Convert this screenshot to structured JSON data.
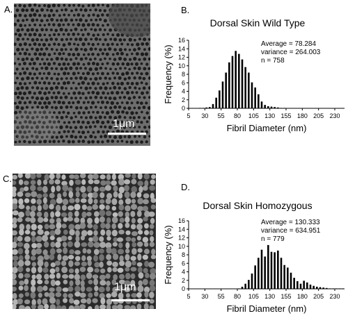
{
  "panels": {
    "a": {
      "letter": "A.",
      "scale_label": "1μm"
    },
    "b": {
      "letter": "B."
    },
    "c": {
      "letter": "C.",
      "scale_label": "1μm"
    },
    "d": {
      "letter": "D."
    }
  },
  "chart_data": [
    {
      "type": "bar",
      "title": "Dorsal Skin Wild Type",
      "xlabel": "Fibril Diameter (nm)",
      "ylabel": "Frequency (%)",
      "xlim": [
        5,
        245
      ],
      "ylim": [
        0,
        16
      ],
      "xticks": [
        5,
        30,
        55,
        80,
        105,
        130,
        155,
        180,
        205,
        230
      ],
      "yticks": [
        0,
        2,
        4,
        6,
        8,
        10,
        12,
        14,
        16
      ],
      "bin_width": 5,
      "annotations": [
        "Average = 78.284",
        "variance = 264.003",
        "n = 758"
      ],
      "x": [
        5,
        10,
        15,
        20,
        25,
        30,
        35,
        40,
        45,
        50,
        55,
        60,
        65,
        70,
        75,
        80,
        85,
        90,
        95,
        100,
        105,
        110,
        115,
        120,
        125,
        130,
        135,
        140,
        145,
        150,
        155,
        160,
        165,
        170,
        175,
        180,
        185,
        190,
        195,
        200,
        205,
        210,
        215,
        220,
        225,
        230,
        235,
        240
      ],
      "values": [
        0,
        0,
        0,
        0.1,
        0.1,
        0.2,
        0.3,
        1.0,
        2.5,
        4.2,
        6.3,
        8.4,
        10.8,
        12.3,
        13.5,
        12.8,
        11.5,
        9.7,
        8.4,
        6.1,
        4.9,
        3.3,
        1.6,
        0.8,
        0.5,
        0.4,
        0.3,
        0.2,
        0.1,
        0.1,
        0,
        0,
        0,
        0,
        0,
        0,
        0,
        0,
        0,
        0,
        0,
        0,
        0,
        0,
        0,
        0,
        0,
        0
      ]
    },
    {
      "type": "bar",
      "title": "Dorsal Skin Homozygous",
      "xlabel": "Fibril Diameter (nm)",
      "ylabel": "Frequency (%)",
      "xlim": [
        5,
        245
      ],
      "ylim": [
        0,
        16
      ],
      "xticks": [
        5,
        30,
        55,
        80,
        105,
        130,
        155,
        180,
        205,
        230
      ],
      "yticks": [
        0,
        2,
        4,
        6,
        8,
        10,
        12,
        14,
        16
      ],
      "bin_width": 5,
      "annotations": [
        "Average = 130.333",
        "variance = 634.951",
        "n = 779"
      ],
      "x": [
        5,
        10,
        15,
        20,
        25,
        30,
        35,
        40,
        45,
        50,
        55,
        60,
        65,
        70,
        75,
        80,
        85,
        90,
        95,
        100,
        105,
        110,
        115,
        120,
        125,
        130,
        135,
        140,
        145,
        150,
        155,
        160,
        165,
        170,
        175,
        180,
        185,
        190,
        195,
        200,
        205,
        210,
        215,
        220,
        225,
        230,
        235,
        240
      ],
      "values": [
        0,
        0,
        0,
        0,
        0,
        0,
        0,
        0,
        0,
        0,
        0,
        0,
        0,
        0,
        0,
        0.1,
        0.5,
        1.2,
        2.1,
        3.6,
        5.5,
        7.3,
        9.2,
        7.6,
        10.3,
        8.7,
        8.6,
        9.0,
        7.3,
        5.6,
        5.0,
        3.8,
        2.6,
        1.8,
        1.2,
        1.9,
        1.5,
        1.0,
        0.7,
        0.5,
        0.4,
        0.3,
        0.2,
        0.1,
        0.1,
        0.1,
        0.1,
        0.1
      ]
    }
  ]
}
